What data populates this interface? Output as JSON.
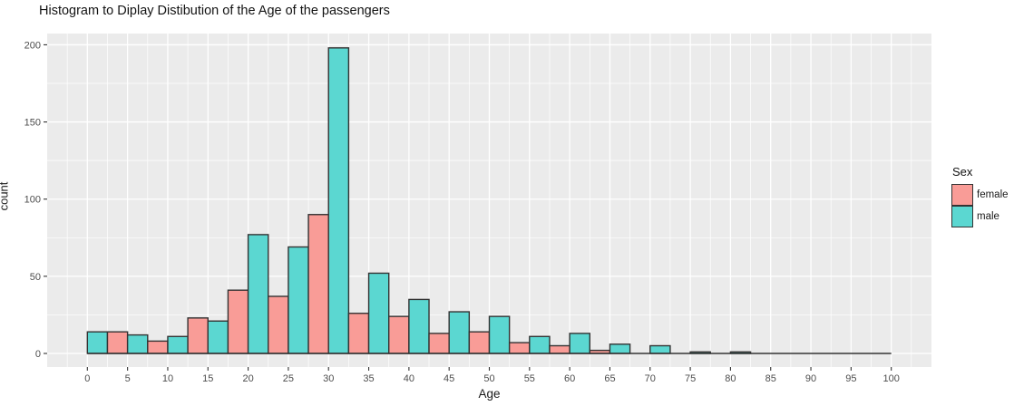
{
  "title": "Histogram to Diplay Distibution of the Age of the passengers",
  "legend": {
    "title": "Sex",
    "entries": [
      {
        "label": "female",
        "color": "#F99C97"
      },
      {
        "label": "male",
        "color": "#5BD7D1"
      }
    ]
  },
  "colors": {
    "panel_bg": "#EBEBEB",
    "grid": "#FFFFFF",
    "bar_border": "#333333",
    "tick_text": "#4D4D4D",
    "tick_mark": "#333333"
  },
  "chart_data": {
    "type": "bar",
    "subtype": "dodged-histogram",
    "title": "Histogram to Diplay Distibution of the Age of the passengers",
    "xlabel": "Age",
    "ylabel": "count",
    "bin_width": 5,
    "bin_centers": [
      0,
      5,
      10,
      15,
      20,
      25,
      30,
      35,
      40,
      45,
      50,
      55,
      60,
      65,
      70,
      75,
      80
    ],
    "series": [
      {
        "name": "female",
        "color": "#F99C97",
        "values": [
          0,
          14,
          8,
          23,
          41,
          37,
          90,
          26,
          24,
          13,
          14,
          7,
          5,
          2,
          0,
          0,
          0
        ]
      },
      {
        "name": "male",
        "color": "#5BD7D1",
        "values": [
          14,
          12,
          11,
          21,
          77,
          69,
          198,
          52,
          35,
          27,
          24,
          11,
          13,
          6,
          5,
          1,
          1
        ]
      }
    ],
    "x_ticks": [
      0,
      5,
      10,
      15,
      20,
      25,
      30,
      35,
      40,
      45,
      50,
      55,
      60,
      65,
      70,
      75,
      80,
      85,
      90,
      95,
      100
    ],
    "y_ticks": [
      0,
      50,
      100,
      150,
      200
    ],
    "xlim": [
      -5,
      105
    ],
    "ylim": [
      -8.8,
      207.3
    ],
    "baseline_extent": [
      0,
      100
    ],
    "grid": true,
    "legend_position": "right"
  }
}
